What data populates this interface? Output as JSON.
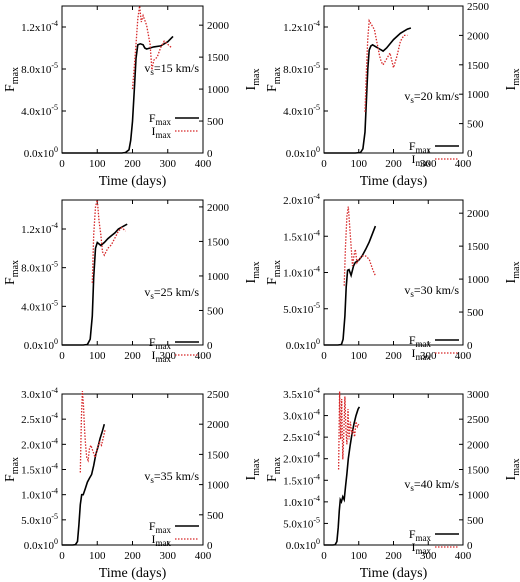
{
  "chart_data": [
    {
      "type": "line",
      "annotation": "v",
      "annotation_sub": "s",
      "annotation_rest": "=15 km/s",
      "xlabel": "Time (days)",
      "ylabel_left": "F",
      "ylabel_left_sub": "max",
      "ylabel_right": "I",
      "ylabel_right_sub": "max",
      "xlim": [
        0,
        400
      ],
      "ylim_left": [
        0,
        0.00014
      ],
      "ylim_right": [
        0,
        2300
      ],
      "x_ticks": [
        "0",
        "100",
        "200",
        "300",
        "400"
      ],
      "y_left_ticks": [
        {
          "value": 0,
          "label": "0.0x10",
          "exp": "0"
        },
        {
          "value": 4e-05,
          "label": "4.0x10",
          "exp": "-5"
        },
        {
          "value": 8e-05,
          "label": "8.0x10",
          "exp": "-5"
        },
        {
          "value": 0.00012,
          "label": "1.2x10",
          "exp": "-4"
        }
      ],
      "y_right_ticks": [
        0,
        500,
        1000,
        1500,
        2000
      ],
      "legend": {
        "placement": "right",
        "entries": [
          {
            "name": "F",
            "sub": "max",
            "color": "#000000",
            "dash": "solid"
          },
          {
            "name": "I",
            "sub": "max",
            "color": "#d62728",
            "dash": "dotted"
          }
        ]
      },
      "series": [
        {
          "name": "Fmax",
          "axis": "left",
          "color": "#000000",
          "dash": "solid",
          "x": [
            0,
            150,
            170,
            180,
            190,
            195,
            200,
            205,
            210,
            215,
            222,
            230,
            235,
            240,
            250,
            260,
            280,
            300,
            315
          ],
          "y": [
            0,
            0,
            0,
            5e-07,
            3e-06,
            1.2e-05,
            3e-05,
            6e-05,
            9e-05,
            0.000103,
            0.000104,
            0.000103,
            0.0001,
            9.9e-05,
            0.0001,
            0.000101,
            0.000102,
            0.000106,
            0.000111
          ]
        },
        {
          "name": "Imax",
          "axis": "right",
          "color": "#d62728",
          "dash": "dotted",
          "x": [
            200,
            205,
            210,
            215,
            220,
            225,
            230,
            240,
            250,
            255,
            260,
            270,
            280,
            290,
            300,
            310
          ],
          "y": [
            1000,
            1350,
            1700,
            2100,
            2300,
            2050,
            2150,
            2000,
            1700,
            1300,
            1450,
            1500,
            1650,
            1750,
            1700,
            1650
          ]
        }
      ]
    },
    {
      "type": "line",
      "annotation": "v",
      "annotation_sub": "s",
      "annotation_rest": "=20 km/s",
      "xlabel": "Time (days)",
      "ylabel_left": "F",
      "ylabel_left_sub": "max",
      "ylabel_right": "I",
      "ylabel_right_sub": "max",
      "xlim": [
        0,
        400
      ],
      "ylim_left": [
        0,
        0.00014
      ],
      "ylim_right": [
        0,
        2500
      ],
      "x_ticks": [
        "0",
        "100",
        "200",
        "300",
        "400"
      ],
      "y_left_ticks": [
        {
          "value": 0,
          "label": "0.0x10",
          "exp": "0"
        },
        {
          "value": 4e-05,
          "label": "4.0x10",
          "exp": "-5"
        },
        {
          "value": 8e-05,
          "label": "8.0x10",
          "exp": "-5"
        },
        {
          "value": 0.00012,
          "label": "1.2x10",
          "exp": "-4"
        }
      ],
      "y_right_ticks": [
        0,
        500,
        1000,
        1500,
        2000,
        2500
      ],
      "legend": {
        "placement": "right",
        "entries": [
          {
            "name": "F",
            "sub": "max",
            "color": "#000000",
            "dash": "solid"
          },
          {
            "name": "I",
            "sub": "max",
            "color": "#d62728",
            "dash": "dotted"
          }
        ]
      },
      "series": [
        {
          "name": "Fmax",
          "axis": "left",
          "color": "#000000",
          "dash": "solid",
          "x": [
            0,
            90,
            105,
            112,
            118,
            122,
            126,
            130,
            135,
            140,
            150,
            160,
            170,
            180,
            200,
            220,
            240,
            250
          ],
          "y": [
            0,
            0,
            5e-07,
            4e-06,
            2e-05,
            5e-05,
            8e-05,
            9.8e-05,
            0.000102,
            0.000103,
            0.000101,
            9.9e-05,
            9.7e-05,
            0.0001,
            0.000108,
            0.000114,
            0.000118,
            0.000119
          ]
        },
        {
          "name": "Imax",
          "axis": "right",
          "color": "#d62728",
          "dash": "dotted",
          "x": [
            118,
            122,
            126,
            130,
            135,
            140,
            145,
            150,
            155,
            160,
            165,
            170,
            180,
            190,
            200,
            210,
            220,
            230,
            240
          ],
          "y": [
            700,
            1400,
            1950,
            2250,
            2200,
            2150,
            2100,
            1950,
            1800,
            1650,
            1550,
            1500,
            1600,
            1700,
            1450,
            1650,
            1900,
            2000,
            2000
          ]
        }
      ]
    },
    {
      "type": "line",
      "annotation": "v",
      "annotation_sub": "s",
      "annotation_rest": "=25 km/s",
      "xlabel": "",
      "ylabel_left": "F",
      "ylabel_left_sub": "max",
      "ylabel_right": "I",
      "ylabel_right_sub": "max",
      "xlim": [
        0,
        400
      ],
      "ylim_left": [
        0,
        0.00015
      ],
      "ylim_right": [
        0,
        2100
      ],
      "x_ticks": [
        "0",
        "100",
        "200",
        "300",
        "400"
      ],
      "y_left_ticks": [
        {
          "value": 0,
          "label": "0.0x10",
          "exp": "0"
        },
        {
          "value": 4e-05,
          "label": "4.0x10",
          "exp": "-5"
        },
        {
          "value": 8e-05,
          "label": "8.0x10",
          "exp": "-5"
        },
        {
          "value": 0.00012,
          "label": "1.2x10",
          "exp": "-4"
        }
      ],
      "y_right_ticks": [
        0,
        500,
        1000,
        1500,
        2000
      ],
      "legend": {
        "placement": "right",
        "entries": [
          {
            "name": "F",
            "sub": "max",
            "color": "#000000",
            "dash": "solid"
          },
          {
            "name": "I",
            "sub": "max",
            "color": "#d62728",
            "dash": "dotted"
          }
        ]
      },
      "series": [
        {
          "name": "Fmax",
          "axis": "left",
          "color": "#000000",
          "dash": "solid",
          "x": [
            0,
            60,
            72,
            80,
            86,
            90,
            95,
            100,
            110,
            120,
            130,
            140,
            150,
            160,
            170,
            180,
            185
          ],
          "y": [
            0,
            0,
            5e-07,
            6e-06,
            3e-05,
            7e-05,
            0.0001,
            0.000106,
            0.000103,
            0.000106,
            0.00011,
            0.000113,
            0.000116,
            0.00012,
            0.000122,
            0.000124,
            0.000125
          ]
        },
        {
          "name": "Imax",
          "axis": "right",
          "color": "#d62728",
          "dash": "dotted",
          "x": [
            86,
            90,
            95,
            100,
            105,
            110,
            115,
            120,
            130,
            140,
            150,
            160,
            170,
            180
          ],
          "y": [
            900,
            1600,
            2000,
            2100,
            1800,
            1600,
            1350,
            1300,
            1400,
            1450,
            1550,
            1650,
            1700,
            1650
          ]
        }
      ]
    },
    {
      "type": "line",
      "annotation": "v",
      "annotation_sub": "s",
      "annotation_rest": "=30 km/s",
      "xlabel": "",
      "ylabel_left": "F",
      "ylabel_left_sub": "max",
      "ylabel_right": "I",
      "ylabel_right_sub": "max",
      "xlim": [
        0,
        400
      ],
      "ylim_left": [
        0,
        0.0002
      ],
      "ylim_right": [
        0,
        2200
      ],
      "x_ticks": [
        "0",
        "100",
        "200",
        "300",
        "400"
      ],
      "y_left_ticks": [
        {
          "value": 0,
          "label": "0.0x10",
          "exp": "0"
        },
        {
          "value": 5e-05,
          "label": "5.0x10",
          "exp": "-5"
        },
        {
          "value": 0.0001,
          "label": "1.0x10",
          "exp": "-4"
        },
        {
          "value": 0.00015,
          "label": "1.5x10",
          "exp": "-4"
        },
        {
          "value": 0.0002,
          "label": "2.0x10",
          "exp": "-4"
        }
      ],
      "y_right_ticks": [
        0,
        500,
        1000,
        1500,
        2000
      ],
      "legend": {
        "placement": "right",
        "entries": [
          {
            "name": "F",
            "sub": "max",
            "color": "#000000",
            "dash": "solid"
          },
          {
            "name": "I",
            "sub": "max",
            "color": "#d62728",
            "dash": "dotted"
          }
        ]
      },
      "series": [
        {
          "name": "Fmax",
          "axis": "left",
          "color": "#000000",
          "dash": "solid",
          "x": [
            0,
            40,
            50,
            55,
            60,
            64,
            68,
            72,
            78,
            85,
            90,
            100,
            110,
            120,
            130,
            140,
            148
          ],
          "y": [
            0,
            0,
            5e-07,
            8e-06,
            4e-05,
            8e-05,
            0.000103,
            0.000104,
            9.6e-05,
            0.000109,
            0.000114,
            0.000117,
            0.000123,
            0.000132,
            0.000142,
            0.000154,
            0.000164
          ]
        },
        {
          "name": "Imax",
          "axis": "right",
          "color": "#d62728",
          "dash": "dotted",
          "x": [
            58,
            62,
            66,
            70,
            74,
            78,
            82,
            86,
            90,
            95,
            100,
            110,
            120,
            130,
            140,
            148
          ],
          "y": [
            900,
            1500,
            1950,
            2100,
            1800,
            1500,
            1200,
            1350,
            1450,
            1250,
            1300,
            1350,
            1350,
            1300,
            1150,
            1050
          ]
        }
      ]
    },
    {
      "type": "line",
      "annotation": "v",
      "annotation_sub": "s",
      "annotation_rest": "=35 km/s",
      "xlabel": "Time (days)",
      "ylabel_left": "F",
      "ylabel_left_sub": "max",
      "ylabel_right": "I",
      "ylabel_right_sub": "max",
      "xlim": [
        0,
        400
      ],
      "ylim_left": [
        0,
        0.0003
      ],
      "ylim_right": [
        0,
        2500
      ],
      "x_ticks": [
        "0",
        "100",
        "200",
        "300",
        "400"
      ],
      "y_left_ticks": [
        {
          "value": 0,
          "label": "0.0x10",
          "exp": "0"
        },
        {
          "value": 5e-05,
          "label": "5.0x10",
          "exp": "-5"
        },
        {
          "value": 0.0001,
          "label": "1.0x10",
          "exp": "-4"
        },
        {
          "value": 0.00015,
          "label": "1.5x10",
          "exp": "-4"
        },
        {
          "value": 0.0002,
          "label": "2.0x10",
          "exp": "-4"
        },
        {
          "value": 0.00025,
          "label": "2.5x10",
          "exp": "-4"
        },
        {
          "value": 0.0003,
          "label": "3.0x10",
          "exp": "-4"
        }
      ],
      "y_right_ticks": [
        0,
        500,
        1000,
        1500,
        2000,
        2500
      ],
      "legend": {
        "placement": "right",
        "entries": [
          {
            "name": "F",
            "sub": "max",
            "color": "#000000",
            "dash": "solid"
          },
          {
            "name": "I",
            "sub": "max",
            "color": "#d62728",
            "dash": "dotted"
          }
        ]
      },
      "series": [
        {
          "name": "Fmax",
          "axis": "left",
          "color": "#000000",
          "dash": "solid",
          "x": [
            0,
            30,
            38,
            44,
            48,
            52,
            56,
            60,
            66,
            72,
            78,
            84,
            90,
            96,
            102,
            108,
            114,
            120
          ],
          "y": [
            0,
            0,
            5e-07,
            7e-06,
            4e-05,
            8e-05,
            0.0001,
            0.0001,
            0.000112,
            0.000125,
            0.000133,
            0.00014,
            0.000158,
            0.00018,
            0.000195,
            0.000212,
            0.000225,
            0.00024
          ]
        },
        {
          "name": "Imax",
          "axis": "right",
          "color": "#d62728",
          "dash": "dotted",
          "x": [
            52,
            55,
            58,
            61,
            64,
            67,
            70,
            74,
            78,
            82,
            88,
            94,
            100,
            106,
            112,
            118,
            122
          ],
          "y": [
            1200,
            2100,
            2550,
            2300,
            1900,
            1650,
            1450,
            1400,
            1600,
            1650,
            1550,
            1450,
            1600,
            1700,
            1650,
            1800,
            1900
          ]
        }
      ]
    },
    {
      "type": "line",
      "annotation": "v",
      "annotation_sub": "s",
      "annotation_rest": "=40 km/s",
      "xlabel": "Time (days)",
      "ylabel_left": "F",
      "ylabel_left_sub": "max",
      "ylabel_right": "I",
      "ylabel_right_sub": "max",
      "xlim": [
        0,
        400
      ],
      "ylim_left": [
        0,
        0.00035
      ],
      "ylim_right": [
        0,
        3000
      ],
      "x_ticks": [
        "0",
        "100",
        "200",
        "300",
        "400"
      ],
      "y_left_ticks": [
        {
          "value": 0,
          "label": "0.0x10",
          "exp": "0"
        },
        {
          "value": 5e-05,
          "label": "5.0x10",
          "exp": "-5"
        },
        {
          "value": 0.0001,
          "label": "1.0x10",
          "exp": "-4"
        },
        {
          "value": 0.00015,
          "label": "1.5x10",
          "exp": "-4"
        },
        {
          "value": 0.0002,
          "label": "2.0x10",
          "exp": "-4"
        },
        {
          "value": 0.00025,
          "label": "2.5x10",
          "exp": "-4"
        },
        {
          "value": 0.0003,
          "label": "3.0x10",
          "exp": "-4"
        },
        {
          "value": 0.00035,
          "label": "3.5x10",
          "exp": "-4"
        }
      ],
      "y_right_ticks": [
        0,
        500,
        1000,
        1500,
        2000,
        2500,
        3000
      ],
      "legend": {
        "placement": "right",
        "entries": [
          {
            "name": "F",
            "sub": "max",
            "color": "#000000",
            "dash": "solid"
          },
          {
            "name": "I",
            "sub": "max",
            "color": "#d62728",
            "dash": "dotted"
          }
        ]
      },
      "series": [
        {
          "name": "Fmax",
          "axis": "left",
          "color": "#000000",
          "dash": "solid",
          "x": [
            0,
            25,
            32,
            37,
            41,
            44,
            47,
            50,
            54,
            58,
            62,
            66,
            70,
            75,
            80,
            86,
            92,
            98,
            102
          ],
          "y": [
            0,
            0,
            5e-07,
            8e-06,
            4e-05,
            8e-05,
            0.000105,
            0.0001,
            0.000112,
            0.000105,
            0.000135,
            0.000165,
            0.0002,
            0.00023,
            0.000255,
            0.00028,
            0.0003,
            0.000315,
            0.00032
          ]
        },
        {
          "name": "Imax",
          "axis": "right",
          "color": "#d62728",
          "dash": "dotted",
          "x": [
            42,
            45,
            48,
            51,
            54,
            57,
            60,
            63,
            66,
            69,
            72,
            76,
            80,
            84,
            88,
            92,
            96,
            100
          ],
          "y": [
            1500,
            3050,
            2100,
            2900,
            1700,
            2200,
            2950,
            2300,
            2000,
            2700,
            2100,
            2450,
            2200,
            2300,
            2150,
            2450,
            2350,
            2400
          ]
        }
      ]
    }
  ]
}
